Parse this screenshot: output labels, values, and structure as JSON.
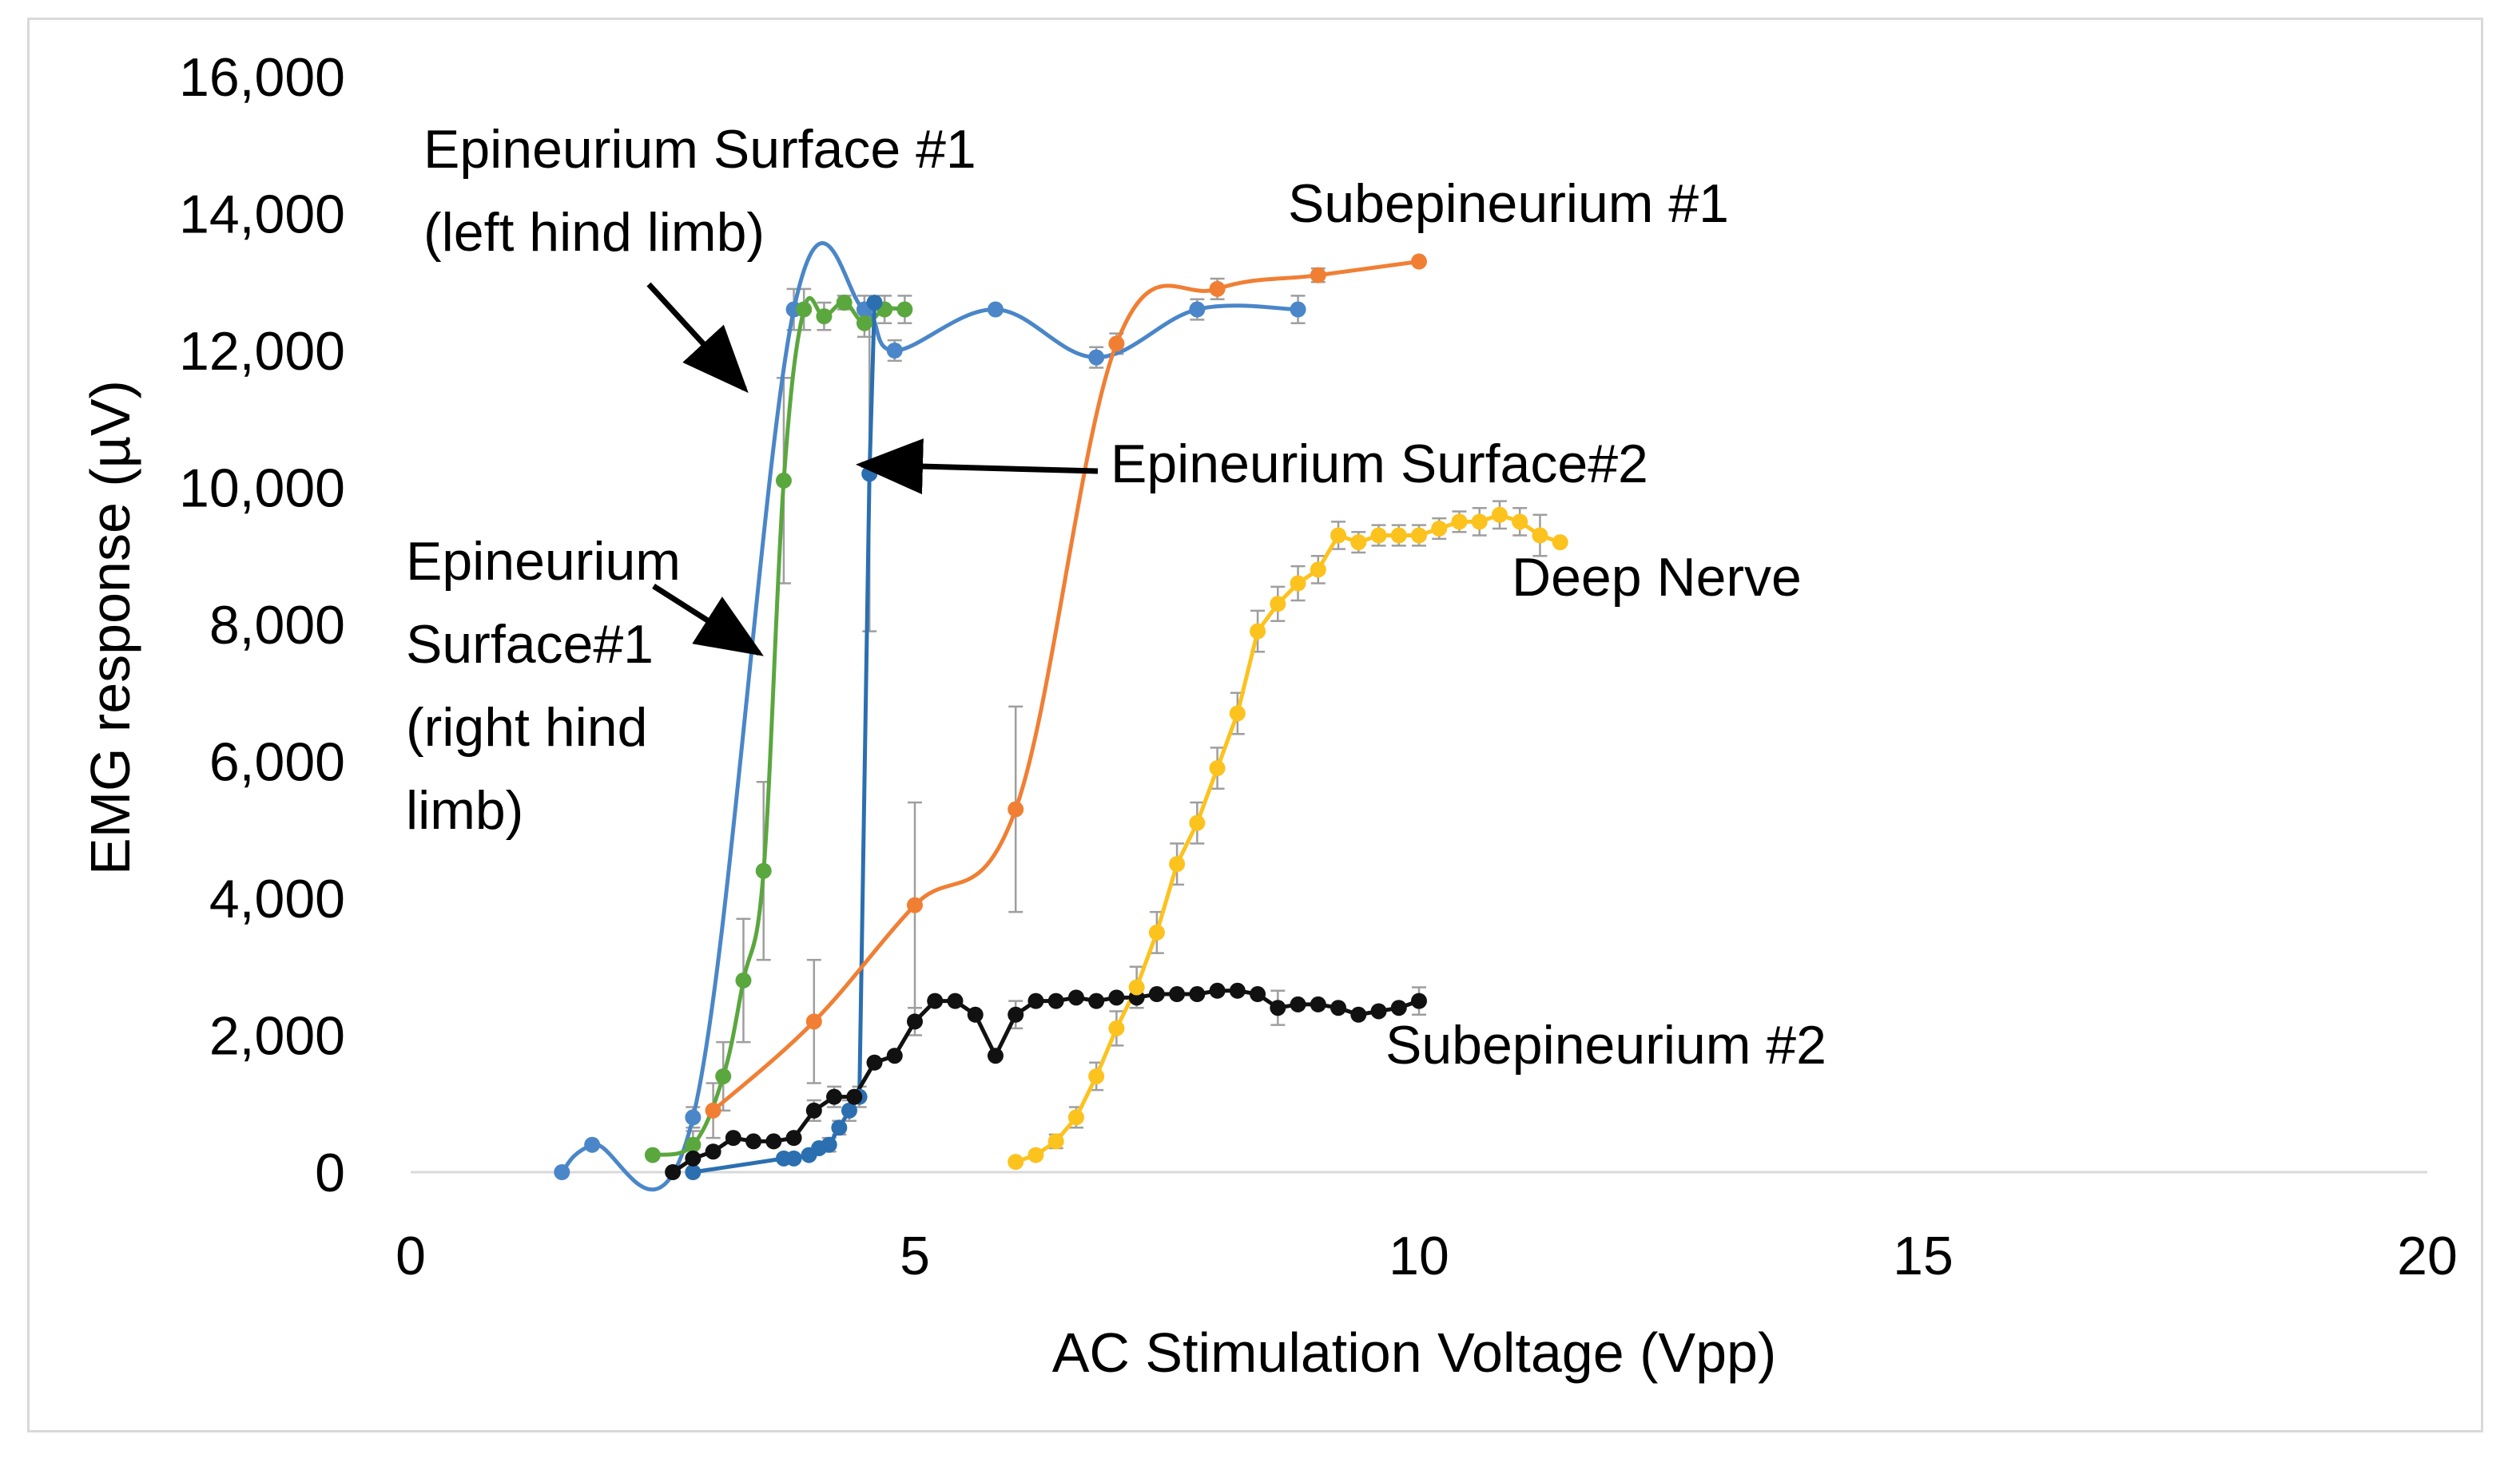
{
  "chart_data": {
    "type": "scatter",
    "title": "",
    "xlabel": "AC Stimulation Voltage (Vpp)",
    "ylabel": "EMG response (µV)",
    "xlim": [
      0,
      20
    ],
    "ylim": [
      0,
      16000
    ],
    "xticks": [
      0,
      5,
      10,
      15,
      20
    ],
    "yticks": [
      0,
      2000,
      4000,
      6000,
      8000,
      10000,
      12000,
      14000,
      16000
    ],
    "xtick_labels": [
      "0",
      "5",
      "10",
      "15",
      "20"
    ],
    "ytick_labels": [
      "0",
      "2,000",
      "4,000",
      "6,000",
      "8,000",
      "10,000",
      "12,000",
      "14,000",
      "16,000"
    ],
    "grid": false,
    "legend": "none (series labelled by annotations)",
    "series": [
      {
        "name": "Epineurium Surface #1 (left hind limb)",
        "color": "#4a86c8",
        "smooth": true,
        "x": [
          1.5,
          1.8,
          2.8,
          3.8,
          4.5,
          4.8,
          5.8,
          6.8,
          7.8,
          8.8
        ],
        "y": [
          0,
          400,
          800,
          12600,
          12600,
          12000,
          12600,
          11900,
          12600,
          12600
        ],
        "err": [
          0,
          0,
          150,
          300,
          200,
          150,
          0,
          150,
          150,
          200
        ]
      },
      {
        "name": "Epineurium Surface#1 (right hind limb)",
        "color": "#5aa73e",
        "smooth": true,
        "x": [
          2.4,
          2.8,
          3.1,
          3.3,
          3.5,
          3.7,
          3.9,
          4.1,
          4.3,
          4.5,
          4.7,
          4.9
        ],
        "y": [
          250,
          400,
          1400,
          2800,
          4400,
          10100,
          12600,
          12500,
          12700,
          12400,
          12600,
          12600
        ],
        "err": [
          0,
          200,
          500,
          900,
          1300,
          1500,
          300,
          200,
          100,
          200,
          200,
          200
        ]
      },
      {
        "name": "Epineurium Surface#2",
        "color": "#2b6fb0",
        "smooth": false,
        "x": [
          2.8,
          3.7,
          3.8,
          3.95,
          4.05,
          4.15,
          4.25,
          4.35,
          4.45,
          4.55,
          4.6
        ],
        "y": [
          0,
          200,
          200,
          250,
          350,
          400,
          650,
          900,
          1100,
          10200,
          12700
        ],
        "err": [
          0,
          0,
          0,
          0,
          0,
          100,
          100,
          150,
          150,
          2300,
          0
        ]
      },
      {
        "name": "Subepineurium #1",
        "color": "#f07f34",
        "smooth": true,
        "x": [
          3,
          4,
          5,
          6,
          7,
          8,
          9,
          10
        ],
        "y": [
          900,
          2200,
          3900,
          5300,
          12100,
          12900,
          13100,
          13300
        ],
        "err": [
          400,
          900,
          1500,
          1500,
          150,
          150,
          100,
          0
        ]
      },
      {
        "name": "Subepineurium #2",
        "color": "#111111",
        "smooth": false,
        "x": [
          2.6,
          2.8,
          3,
          3.2,
          3.4,
          3.6,
          3.8,
          4,
          4.2,
          4.4,
          4.6,
          4.8,
          5,
          5.2,
          5.4,
          5.6,
          5.8,
          6,
          6.2,
          6.4,
          6.6,
          6.8,
          7,
          7.2,
          7.4,
          7.6,
          7.8,
          8,
          8.2,
          8.4,
          8.6,
          8.8,
          9,
          9.2,
          9.4,
          9.6,
          9.8,
          10
        ],
        "y": [
          0,
          200,
          300,
          500,
          450,
          450,
          500,
          900,
          1100,
          1100,
          1600,
          1700,
          2200,
          2500,
          2500,
          2300,
          1700,
          2300,
          2500,
          2500,
          2550,
          2500,
          2550,
          2550,
          2600,
          2600,
          2600,
          2650,
          2650,
          2600,
          2400,
          2450,
          2450,
          2400,
          2300,
          2350,
          2400,
          2500
        ],
        "err": [
          0,
          0,
          0,
          0,
          0,
          0,
          0,
          150,
          150,
          0,
          0,
          0,
          200,
          0,
          0,
          0,
          0,
          200,
          0,
          0,
          0,
          0,
          0,
          0,
          0,
          0,
          0,
          0,
          0,
          0,
          250,
          0,
          0,
          0,
          0,
          0,
          0,
          200
        ]
      },
      {
        "name": "Deep Nerve",
        "color": "#fcc21e",
        "smooth": false,
        "x": [
          6,
          6.2,
          6.4,
          6.6,
          6.8,
          7,
          7.2,
          7.4,
          7.6,
          7.8,
          8,
          8.2,
          8.4,
          8.6,
          8.8,
          9,
          9.2,
          9.4,
          9.6,
          9.8,
          10,
          10.2,
          10.4,
          10.6,
          10.8,
          11,
          11.2,
          11.4
        ],
        "y": [
          150,
          250,
          450,
          800,
          1400,
          2100,
          2700,
          3500,
          4500,
          5100,
          5900,
          6700,
          7900,
          8300,
          8600,
          8800,
          9300,
          9200,
          9300,
          9300,
          9300,
          9400,
          9500,
          9500,
          9600,
          9500,
          9300,
          9200
        ],
        "err": [
          0,
          0,
          100,
          150,
          200,
          250,
          300,
          300,
          300,
          300,
          300,
          300,
          300,
          250,
          250,
          200,
          200,
          150,
          150,
          150,
          150,
          150,
          150,
          200,
          200,
          200,
          300,
          0
        ]
      }
    ],
    "annotations": [
      {
        "lines": [
          "Epineurium Surface #1",
          "(left hind limb)"
        ],
        "arrow": true
      },
      {
        "lines": [
          "Epineurium",
          "Surface#1",
          "(right hind",
          "limb)"
        ],
        "arrow": true
      },
      {
        "lines": [
          "Epineurium Surface#2"
        ],
        "arrow": true
      },
      {
        "lines": [
          "Subepineurium #1"
        ],
        "arrow": false
      },
      {
        "lines": [
          "Deep Nerve"
        ],
        "arrow": false
      },
      {
        "lines": [
          "Subepineurium #2"
        ],
        "arrow": false
      }
    ]
  }
}
